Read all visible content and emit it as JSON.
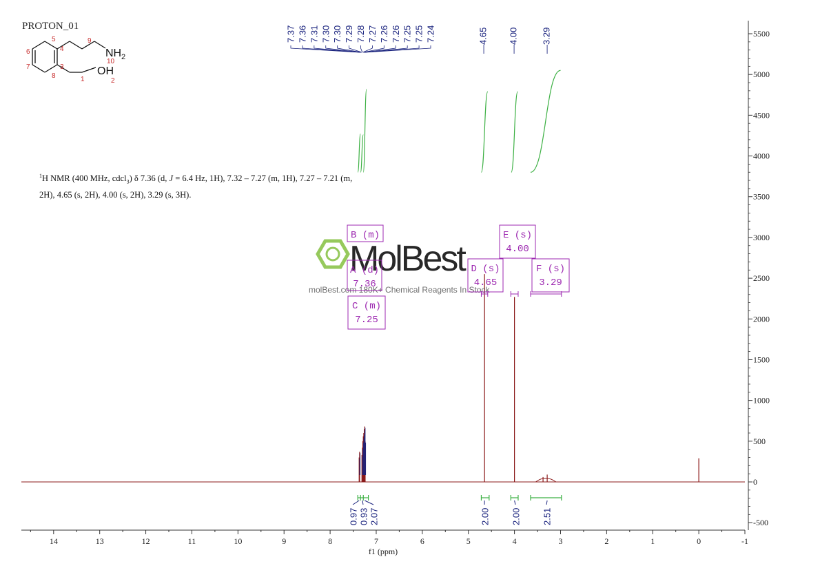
{
  "experiment_title": "PROTON_01",
  "nmr_description": {
    "part1": "H NMR (400 MHz, cdcl",
    "part1_sup": "1",
    "sub": "3",
    "part2": ") δ 7.36 (d, ",
    "j_symbol": "J",
    "part3": " = 6.4 Hz, 1H), 7.32 – 7.27 (m, 1H), 7.27 – 7.21 (m,",
    "line2": "2H), 4.65 (s, 2H), 4.00 (s, 2H), 3.29 (s, 3H)."
  },
  "structure": {
    "atom_labels": [
      "5",
      "4",
      "9",
      "6",
      "7",
      "3",
      "8",
      "1",
      "10",
      "2"
    ],
    "groups": [
      "NH",
      "2",
      "OH"
    ]
  },
  "watermark": {
    "logo_text": "MolBest",
    "sub_text": "molBest.com 180K+ Chemical Reagents In Stock"
  },
  "peak_labels": {
    "left_group": [
      "7.37",
      "7.36",
      "7.31",
      "7.30",
      "7.30",
      "7.29",
      "7.28",
      "7.27",
      "7.26",
      "7.26",
      "7.25",
      "7.25",
      "7.24"
    ],
    "singles": [
      "4.65",
      "4.00",
      "3.29"
    ]
  },
  "multiplets": [
    {
      "id": "A",
      "label": "A (d)",
      "shift": "7.36"
    },
    {
      "id": "B",
      "label": "B (m)",
      "shift": ""
    },
    {
      "id": "C",
      "label": "C (m)",
      "shift": "7.25"
    },
    {
      "id": "D",
      "label": "D (s)",
      "shift": "4.65"
    },
    {
      "id": "E",
      "label": "E (s)",
      "shift": "4.00"
    },
    {
      "id": "F",
      "label": "F (s)",
      "shift": "3.29"
    }
  ],
  "integrals": [
    "0.97",
    "0.93",
    "2.07",
    "2.00",
    "2.00",
    "2.51"
  ],
  "colors": {
    "spectrum": "#8b1a1a",
    "integral_curve": "#3cb043",
    "peak_label": "#1a237e",
    "multiplet_box": "#9c27b0",
    "axis": "#333333"
  },
  "chart_data": {
    "type": "line",
    "xlabel": "f1 (ppm)",
    "ylabel": "",
    "xlim": [
      14.7,
      -1
    ],
    "ylim": [
      -570,
      5600
    ],
    "x_reversed": true,
    "x_ticks": [
      14,
      13,
      12,
      11,
      10,
      9,
      8,
      7,
      6,
      5,
      4,
      3,
      2,
      1,
      0,
      -1
    ],
    "x_tick_labels": [
      "14",
      "13",
      "12",
      "11",
      "10",
      "9",
      "8",
      "7",
      "6",
      "5",
      "4",
      "3",
      "2",
      "1",
      "0",
      "-1"
    ],
    "y_ticks": [
      5500,
      5000,
      4500,
      4000,
      3500,
      3000,
      2500,
      2000,
      1500,
      1000,
      500,
      0,
      -500
    ],
    "y_tick_labels": [
      "5500",
      "5000",
      "4500",
      "4000",
      "3500",
      "3000",
      "2500",
      "2000",
      "1500",
      "1000",
      "500",
      "0",
      "-500"
    ],
    "peaks": [
      {
        "ppm": 7.37,
        "intensity": 300
      },
      {
        "ppm": 7.36,
        "intensity": 370
      },
      {
        "ppm": 7.31,
        "intensity": 330
      },
      {
        "ppm": 7.3,
        "intensity": 420
      },
      {
        "ppm": 7.29,
        "intensity": 500
      },
      {
        "ppm": 7.28,
        "intensity": 560
      },
      {
        "ppm": 7.27,
        "intensity": 600
      },
      {
        "ppm": 7.26,
        "intensity": 650
      },
      {
        "ppm": 7.25,
        "intensity": 680
      },
      {
        "ppm": 7.24,
        "intensity": 500
      },
      {
        "ppm": 4.65,
        "intensity": 2550
      },
      {
        "ppm": 4.0,
        "intensity": 2270
      },
      {
        "ppm": 3.29,
        "intensity": 90
      },
      {
        "ppm": 3.38,
        "intensity": 60
      },
      {
        "ppm": 0.0,
        "intensity": 290
      }
    ],
    "broad_humps": [
      {
        "center": 3.32,
        "width": 0.22,
        "intensity": 45
      }
    ],
    "integral_curves": [
      {
        "from": 7.4,
        "to": 7.34,
        "base": 3800,
        "top": 4270
      },
      {
        "from": 7.34,
        "to": 7.28,
        "base": 3800,
        "top": 4260
      },
      {
        "from": 7.28,
        "to": 7.21,
        "base": 3800,
        "top": 4820
      },
      {
        "from": 4.72,
        "to": 4.58,
        "base": 3800,
        "top": 4790
      },
      {
        "from": 4.07,
        "to": 3.93,
        "base": 3800,
        "top": 4790
      },
      {
        "from": 3.65,
        "to": 3.0,
        "base": 3800,
        "top": 5050
      }
    ],
    "integral_ranges": [
      {
        "from": 7.4,
        "to": 7.17
      },
      {
        "from": 4.72,
        "to": 4.55
      },
      {
        "from": 4.08,
        "to": 3.92
      },
      {
        "from": 3.65,
        "to": 2.98
      }
    ]
  }
}
